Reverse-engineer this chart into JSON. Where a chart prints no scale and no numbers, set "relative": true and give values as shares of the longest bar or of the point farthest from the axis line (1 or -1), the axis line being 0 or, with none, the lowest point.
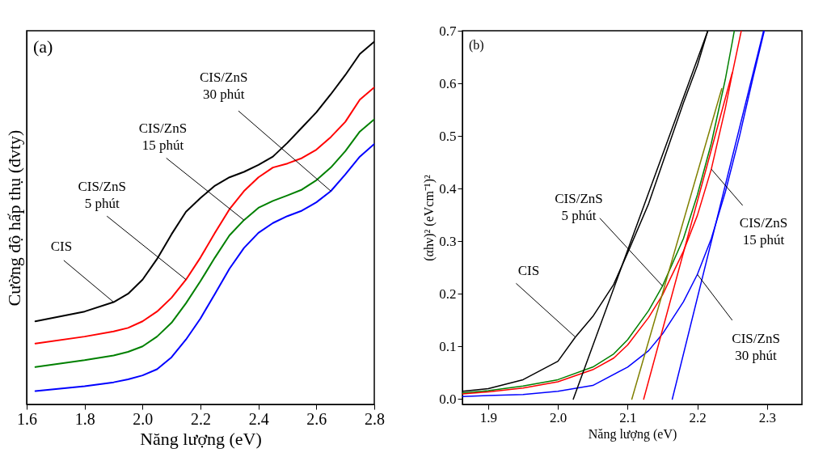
{
  "chart_data": [
    {
      "type": "line",
      "relative": true,
      "xlabel": "Năng lượng (eV)",
      "ylabel": "Cường độ hấp thụ (đvty)",
      "xlim": [
        1.6,
        2.8
      ],
      "xticks": [
        {
          "value": 1.6,
          "label": "1.6"
        },
        {
          "value": 1.8,
          "label": "1.8"
        },
        {
          "value": 2.0,
          "label": "2.0"
        },
        {
          "value": 2.2,
          "label": "2.2"
        },
        {
          "value": 2.4,
          "label": "2.4"
        },
        {
          "value": 2.6,
          "label": "2.6"
        },
        {
          "value": 2.8,
          "label": "2.8"
        }
      ],
      "tick_labels": "x",
      "x": [
        1.63,
        1.8,
        1.9,
        1.95,
        2.0,
        2.05,
        2.1,
        2.15,
        2.2,
        2.25,
        2.3,
        2.35,
        2.4,
        2.45,
        2.5,
        2.55,
        2.6,
        2.65,
        2.7,
        2.75,
        2.8
      ],
      "series": [
        {
          "color": "#000000",
          "values": [
            0.229,
            0.256,
            0.282,
            0.305,
            0.344,
            0.401,
            0.469,
            0.531,
            0.569,
            0.603,
            0.626,
            0.641,
            0.66,
            0.683,
            0.721,
            0.763,
            0.805,
            0.855,
            0.908,
            0.966,
            1.0
          ]
        },
        {
          "color": "#ff0000",
          "values": [
            0.168,
            0.187,
            0.201,
            0.211,
            0.229,
            0.256,
            0.294,
            0.344,
            0.405,
            0.473,
            0.538,
            0.588,
            0.626,
            0.653,
            0.664,
            0.679,
            0.702,
            0.737,
            0.779,
            0.84,
            0.874
          ]
        },
        {
          "color": "#008000",
          "values": [
            0.103,
            0.122,
            0.135,
            0.145,
            0.16,
            0.187,
            0.225,
            0.279,
            0.34,
            0.405,
            0.466,
            0.508,
            0.542,
            0.561,
            0.576,
            0.592,
            0.618,
            0.653,
            0.698,
            0.752,
            0.786
          ]
        },
        {
          "color": "#0000ff",
          "values": [
            0.037,
            0.05,
            0.061,
            0.069,
            0.08,
            0.097,
            0.13,
            0.179,
            0.237,
            0.305,
            0.374,
            0.431,
            0.473,
            0.5,
            0.519,
            0.534,
            0.557,
            0.588,
            0.634,
            0.683,
            0.718
          ]
        }
      ],
      "annotations": [
        "(a)",
        {
          "text": "CIS",
          "x": 1.9,
          "y": 0.282
        },
        {
          "text": "CIS/ZnS\n5 phút",
          "x": 2.15,
          "y": 0.344
        },
        {
          "text": "CIS/ZnS\n15 phút",
          "x": 2.35,
          "y": 0.508
        },
        {
          "text": "CIS/ZnS\n30 phút",
          "x": 2.65,
          "y": 0.588
        }
      ]
    },
    {
      "type": "line",
      "xlabel": "Năng lượng (eV)",
      "ylabel": "(αhν)² (eVcm⁻¹)²",
      "xlim": [
        1.863,
        2.35
      ],
      "ylim": [
        -0.01,
        0.7
      ],
      "xticks": [
        1.9,
        {
          "value": 2.0,
          "label": "2.0"
        },
        2.1,
        2.2,
        2.3
      ],
      "yticks": [
        {
          "value": 0.0,
          "label": "0.0"
        },
        0.1,
        0.2,
        0.3,
        0.4,
        0.5,
        0.6,
        0.7
      ],
      "series": [
        {
          "color": "#000000",
          "x": [
            1.863,
            1.9,
            1.95,
            2.0,
            2.025,
            2.05,
            2.08,
            2.1,
            2.13,
            2.15,
            2.18,
            2.2,
            2.215
          ],
          "values": [
            0.015,
            0.02,
            0.037,
            0.072,
            0.118,
            0.157,
            0.218,
            0.278,
            0.371,
            0.448,
            0.563,
            0.634,
            0.7
          ]
        },
        {
          "color": "#008000",
          "x": [
            1.863,
            1.9,
            1.95,
            2.0,
            2.05,
            2.08,
            2.1,
            2.13,
            2.15,
            2.18,
            2.2,
            2.22,
            2.24,
            2.25,
            2.253
          ],
          "values": [
            0.012,
            0.016,
            0.025,
            0.037,
            0.061,
            0.086,
            0.113,
            0.168,
            0.215,
            0.305,
            0.388,
            0.486,
            0.607,
            0.678,
            0.7
          ]
        },
        {
          "color": "#ff0000",
          "x": [
            1.863,
            1.9,
            1.95,
            2.0,
            2.05,
            2.08,
            2.1,
            2.13,
            2.15,
            2.18,
            2.2,
            2.22,
            2.24,
            2.25,
            2.263
          ],
          "values": [
            0.01,
            0.014,
            0.021,
            0.033,
            0.056,
            0.078,
            0.103,
            0.155,
            0.198,
            0.281,
            0.349,
            0.437,
            0.552,
            0.618,
            0.7
          ]
        },
        {
          "color": "#0000ff",
          "x": [
            1.863,
            1.9,
            1.95,
            2.0,
            2.05,
            2.1,
            2.13,
            2.15,
            2.18,
            2.2,
            2.22,
            2.24,
            2.26,
            2.28,
            2.296
          ],
          "values": [
            0.005,
            0.007,
            0.009,
            0.015,
            0.026,
            0.061,
            0.092,
            0.124,
            0.185,
            0.237,
            0.305,
            0.393,
            0.497,
            0.612,
            0.7
          ]
        },
        {
          "type": "line",
          "color": "#000000",
          "x": [
            2.022,
            2.215
          ],
          "values": [
            0.0,
            0.7
          ]
        },
        {
          "type": "line",
          "color": "#808000",
          "x": [
            2.106,
            2.235
          ],
          "values": [
            0.0,
            0.59
          ]
        },
        {
          "type": "line",
          "color": "#ff0000",
          "x": [
            2.123,
            2.25
          ],
          "values": [
            0.0,
            0.62
          ]
        },
        {
          "type": "line",
          "color": "#0000ff",
          "x": [
            2.164,
            2.295
          ],
          "values": [
            0.0,
            0.7
          ]
        }
      ],
      "annotations": [
        "(b)",
        {
          "text": "CIS",
          "x": 2.025,
          "y": 0.118
        },
        {
          "text": "CIS/ZnS\n5 phút",
          "x": 2.15,
          "y": 0.215
        },
        {
          "text": "CIS/ZnS\n15 phút",
          "x": 2.22,
          "y": 0.437
        },
        {
          "text": "CIS/ZnS\n30 phút",
          "x": 2.2,
          "y": 0.237
        }
      ]
    }
  ]
}
